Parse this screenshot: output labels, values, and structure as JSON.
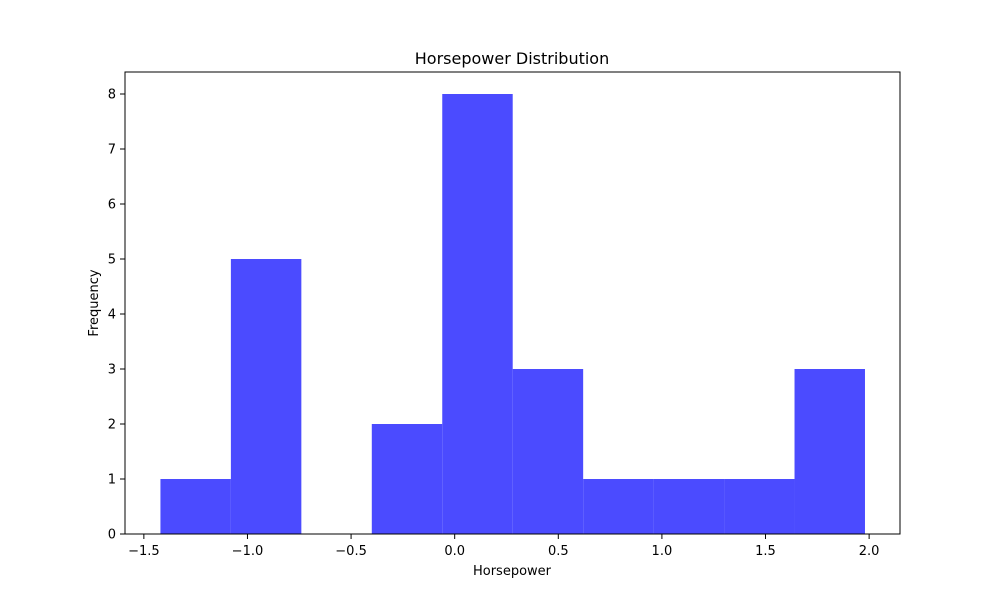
{
  "chart_data": {
    "type": "bar",
    "title": "Horsepower Distribution",
    "xlabel": "Horsepower",
    "ylabel": "Frequency",
    "bar_color": "#4b4bff",
    "bins": [
      {
        "start": -1.42,
        "end": -1.08,
        "count": 1
      },
      {
        "start": -1.08,
        "end": -0.74,
        "count": 5
      },
      {
        "start": -0.74,
        "end": -0.4,
        "count": 0
      },
      {
        "start": -0.4,
        "end": -0.06,
        "count": 2
      },
      {
        "start": -0.06,
        "end": 0.28,
        "count": 8
      },
      {
        "start": 0.28,
        "end": 0.62,
        "count": 3
      },
      {
        "start": 0.62,
        "end": 0.96,
        "count": 1
      },
      {
        "start": 0.96,
        "end": 1.3,
        "count": 1
      },
      {
        "start": 1.3,
        "end": 1.64,
        "count": 1
      },
      {
        "start": 1.64,
        "end": 1.98,
        "count": 3
      }
    ],
    "xticks": [
      "−1.5",
      "−1.0",
      "−0.5",
      "0.0",
      "0.5",
      "1.0",
      "1.5",
      "2.0"
    ],
    "xtick_values": [
      -1.5,
      -1.0,
      -0.5,
      0.0,
      0.5,
      1.0,
      1.5,
      2.0
    ],
    "yticks": [
      "0",
      "1",
      "2",
      "3",
      "4",
      "5",
      "6",
      "7",
      "8"
    ],
    "ytick_values": [
      0,
      1,
      2,
      3,
      4,
      5,
      6,
      7,
      8
    ],
    "xlim": [
      -1.591,
      2.149
    ],
    "ylim": [
      0,
      8.4
    ],
    "grid": false,
    "legend": "none"
  }
}
